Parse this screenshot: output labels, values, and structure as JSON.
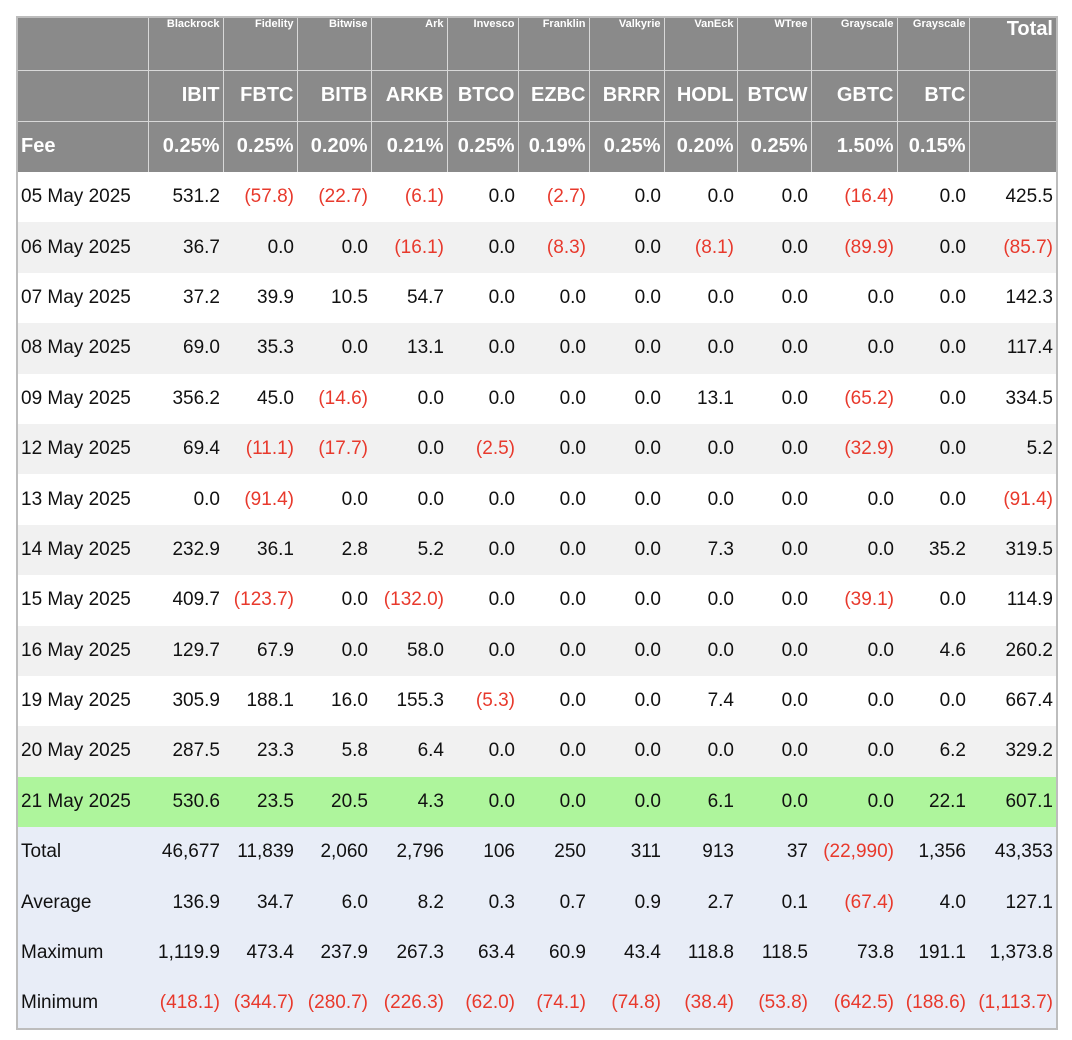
{
  "table": {
    "issuers": [
      "",
      "Blackrock",
      "Fidelity",
      "Bitwise",
      "Ark",
      "Invesco",
      "Franklin",
      "Valkyrie",
      "VanEck",
      "WTree",
      "Grayscale",
      "Grayscale",
      "Total"
    ],
    "tickers": [
      "",
      "IBIT",
      "FBTC",
      "BITB",
      "ARKB",
      "BTCO",
      "EZBC",
      "BRRR",
      "HODL",
      "BTCW",
      "GBTC",
      "BTC",
      ""
    ],
    "fee_label": "Fee",
    "fees": [
      "0.25%",
      "0.25%",
      "0.20%",
      "0.21%",
      "0.25%",
      "0.19%",
      "0.25%",
      "0.20%",
      "0.25%",
      "1.50%",
      "0.15%",
      ""
    ],
    "rows": [
      {
        "date": "05 May 2025",
        "values": [
          "531.2",
          "(57.8)",
          "(22.7)",
          "(6.1)",
          "0.0",
          "(2.7)",
          "0.0",
          "0.0",
          "0.0",
          "(16.4)",
          "0.0",
          "425.5"
        ]
      },
      {
        "date": "06 May 2025",
        "values": [
          "36.7",
          "0.0",
          "0.0",
          "(16.1)",
          "0.0",
          "(8.3)",
          "0.0",
          "(8.1)",
          "0.0",
          "(89.9)",
          "0.0",
          "(85.7)"
        ]
      },
      {
        "date": "07 May 2025",
        "values": [
          "37.2",
          "39.9",
          "10.5",
          "54.7",
          "0.0",
          "0.0",
          "0.0",
          "0.0",
          "0.0",
          "0.0",
          "0.0",
          "142.3"
        ]
      },
      {
        "date": "08 May 2025",
        "values": [
          "69.0",
          "35.3",
          "0.0",
          "13.1",
          "0.0",
          "0.0",
          "0.0",
          "0.0",
          "0.0",
          "0.0",
          "0.0",
          "117.4"
        ]
      },
      {
        "date": "09 May 2025",
        "values": [
          "356.2",
          "45.0",
          "(14.6)",
          "0.0",
          "0.0",
          "0.0",
          "0.0",
          "13.1",
          "0.0",
          "(65.2)",
          "0.0",
          "334.5"
        ]
      },
      {
        "date": "12 May 2025",
        "values": [
          "69.4",
          "(11.1)",
          "(17.7)",
          "0.0",
          "(2.5)",
          "0.0",
          "0.0",
          "0.0",
          "0.0",
          "(32.9)",
          "0.0",
          "5.2"
        ]
      },
      {
        "date": "13 May 2025",
        "values": [
          "0.0",
          "(91.4)",
          "0.0",
          "0.0",
          "0.0",
          "0.0",
          "0.0",
          "0.0",
          "0.0",
          "0.0",
          "0.0",
          "(91.4)"
        ]
      },
      {
        "date": "14 May 2025",
        "values": [
          "232.9",
          "36.1",
          "2.8",
          "5.2",
          "0.0",
          "0.0",
          "0.0",
          "7.3",
          "0.0",
          "0.0",
          "35.2",
          "319.5"
        ]
      },
      {
        "date": "15 May 2025",
        "values": [
          "409.7",
          "(123.7)",
          "0.0",
          "(132.0)",
          "0.0",
          "0.0",
          "0.0",
          "0.0",
          "0.0",
          "(39.1)",
          "0.0",
          "114.9"
        ]
      },
      {
        "date": "16 May 2025",
        "values": [
          "129.7",
          "67.9",
          "0.0",
          "58.0",
          "0.0",
          "0.0",
          "0.0",
          "0.0",
          "0.0",
          "0.0",
          "4.6",
          "260.2"
        ]
      },
      {
        "date": "19 May 2025",
        "values": [
          "305.9",
          "188.1",
          "16.0",
          "155.3",
          "(5.3)",
          "0.0",
          "0.0",
          "7.4",
          "0.0",
          "0.0",
          "0.0",
          "667.4"
        ]
      },
      {
        "date": "20 May 2025",
        "values": [
          "287.5",
          "23.3",
          "5.8",
          "6.4",
          "0.0",
          "0.0",
          "0.0",
          "0.0",
          "0.0",
          "0.0",
          "6.2",
          "329.2"
        ]
      },
      {
        "date": "21 May 2025",
        "values": [
          "530.6",
          "23.5",
          "20.5",
          "4.3",
          "0.0",
          "0.0",
          "0.0",
          "6.1",
          "0.0",
          "0.0",
          "22.1",
          "607.1"
        ],
        "highlight": true
      }
    ],
    "stats": [
      {
        "label": "Total",
        "values": [
          "46,677",
          "11,839",
          "2,060",
          "2,796",
          "106",
          "250",
          "311",
          "913",
          "37",
          "(22,990)",
          "1,356",
          "43,353"
        ]
      },
      {
        "label": "Average",
        "values": [
          "136.9",
          "34.7",
          "6.0",
          "8.2",
          "0.3",
          "0.7",
          "0.9",
          "2.7",
          "0.1",
          "(67.4)",
          "4.0",
          "127.1"
        ]
      },
      {
        "label": "Maximum",
        "values": [
          "1,119.9",
          "473.4",
          "237.9",
          "267.3",
          "63.4",
          "60.9",
          "43.4",
          "118.8",
          "118.5",
          "73.8",
          "191.1",
          "1,373.8"
        ]
      },
      {
        "label": "Minimum",
        "values": [
          "(418.1)",
          "(344.7)",
          "(280.7)",
          "(226.3)",
          "(62.0)",
          "(74.1)",
          "(74.8)",
          "(38.4)",
          "(53.8)",
          "(642.5)",
          "(188.6)",
          "(1,113.7)"
        ]
      }
    ],
    "colors": {
      "header_bg": "#8a8a8a",
      "header_text": "#ffffff",
      "row_alt": "#f1f1f1",
      "highlight_row": "#aef59c",
      "stats_bg": "#e8edf7",
      "negative_text": "#e8392c"
    }
  }
}
